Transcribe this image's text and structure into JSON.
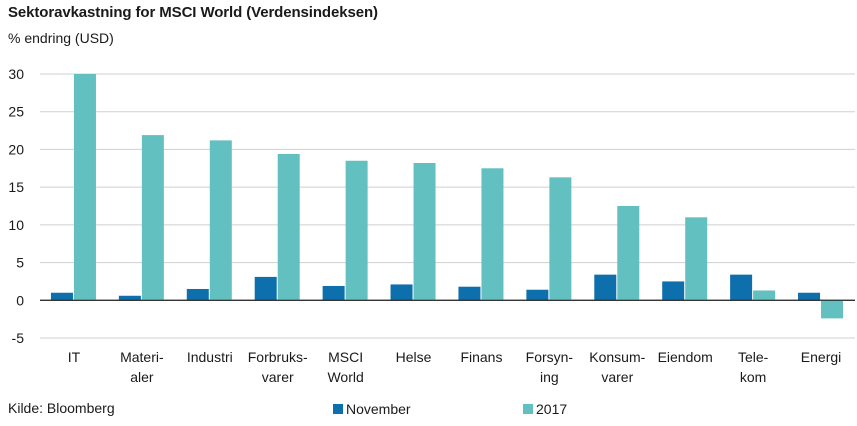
{
  "chart_data": {
    "type": "bar",
    "title": "Sektoravkastning for MSCI World (Verdensindeksen)",
    "ylabel": "% endring (USD)",
    "categories": [
      [
        "IT"
      ],
      [
        "Materi-",
        "aler"
      ],
      [
        "Industri"
      ],
      [
        "Forbruks-",
        "varer"
      ],
      [
        "MSCI",
        "World"
      ],
      [
        "Helse"
      ],
      [
        "Finans"
      ],
      [
        "Forsyn-",
        "ing"
      ],
      [
        "Konsum-",
        "varer"
      ],
      [
        "Eiendom"
      ],
      [
        "Tele-",
        "kom"
      ],
      [
        "Energi"
      ]
    ],
    "series": [
      {
        "name": "November",
        "color": "#0e6fad",
        "values": [
          1.0,
          0.6,
          1.5,
          3.1,
          1.9,
          2.1,
          1.8,
          1.4,
          3.4,
          2.5,
          3.4,
          1.0
        ]
      },
      {
        "name": "2017",
        "color": "#63c0c0",
        "values": [
          30.0,
          21.9,
          21.2,
          19.4,
          18.5,
          18.2,
          17.5,
          16.3,
          12.5,
          11.0,
          1.3,
          -2.4
        ]
      }
    ],
    "ylim": [
      -5,
      30
    ],
    "yticks": [
      -5,
      0,
      5,
      10,
      15,
      20,
      25,
      30
    ],
    "grid": true,
    "legend": "bottom"
  },
  "source": "Kilde: Bloomberg"
}
